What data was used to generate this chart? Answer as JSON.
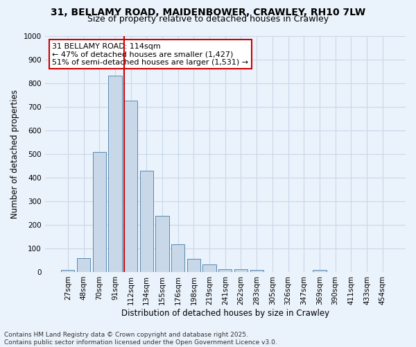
{
  "title1": "31, BELLAMY ROAD, MAIDENBOWER, CRAWLEY, RH10 7LW",
  "title2": "Size of property relative to detached houses in Crawley",
  "xlabel": "Distribution of detached houses by size in Crawley",
  "ylabel": "Number of detached properties",
  "bin_labels": [
    "27sqm",
    "48sqm",
    "70sqm",
    "91sqm",
    "112sqm",
    "134sqm",
    "155sqm",
    "176sqm",
    "198sqm",
    "219sqm",
    "241sqm",
    "262sqm",
    "283sqm",
    "305sqm",
    "326sqm",
    "347sqm",
    "369sqm",
    "390sqm",
    "411sqm",
    "433sqm",
    "454sqm"
  ],
  "bar_values": [
    10,
    58,
    507,
    830,
    725,
    428,
    238,
    118,
    57,
    33,
    12,
    12,
    10,
    0,
    0,
    0,
    8,
    0,
    0,
    0,
    0
  ],
  "bar_color": "#c8d8e8",
  "bar_edge_color": "#5a8ab0",
  "vline_bin_index": 4,
  "vline_color": "#cc0000",
  "annotation_text": "31 BELLAMY ROAD: 114sqm\n← 47% of detached houses are smaller (1,427)\n51% of semi-detached houses are larger (1,531) →",
  "annotation_box_color": "#ffffff",
  "annotation_box_edge": "#cc0000",
  "ylim": [
    0,
    1000
  ],
  "yticks": [
    0,
    100,
    200,
    300,
    400,
    500,
    600,
    700,
    800,
    900,
    1000
  ],
  "grid_color": "#c8d8e8",
  "background_color": "#eaf2fb",
  "footer": "Contains HM Land Registry data © Crown copyright and database right 2025.\nContains public sector information licensed under the Open Government Licence v3.0.",
  "title_fontsize": 10,
  "subtitle_fontsize": 9,
  "axis_label_fontsize": 8.5,
  "tick_fontsize": 7.5,
  "annotation_fontsize": 8,
  "footer_fontsize": 6.5
}
